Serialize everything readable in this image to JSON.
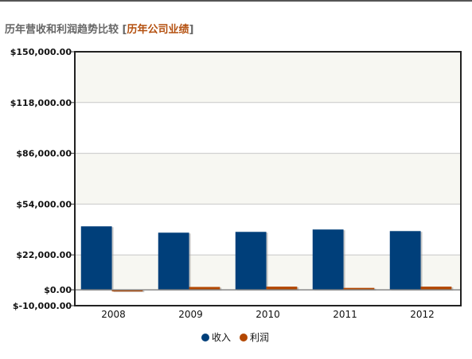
{
  "header": {
    "title": "历年营收和利润趋势比较",
    "bracket_open": "[",
    "link_label": "历年公司业绩",
    "bracket_close": "]"
  },
  "chart_data": {
    "type": "bar",
    "categories": [
      "2008",
      "2009",
      "2010",
      "2011",
      "2012"
    ],
    "series": [
      {
        "name": "收入",
        "color": "#003f7a",
        "values": [
          40000,
          36000,
          36500,
          38000,
          37000
        ]
      },
      {
        "name": "利润",
        "color": "#b34700",
        "values": [
          -1000,
          1800,
          2000,
          1200,
          2000
        ]
      }
    ],
    "ylim": [
      -10000,
      150000
    ],
    "yticks": [
      -10000,
      0,
      22000,
      54000,
      86000,
      118000,
      150000
    ],
    "ytick_labels": [
      "$-10,000.00",
      "$0.00",
      "$22,000.00",
      "$54,000.00",
      "$86,000.00",
      "$118,000.00",
      "$150,000.00"
    ],
    "grid": true,
    "legend_position": "bottom-center",
    "title": "",
    "xlabel": "",
    "ylabel": ""
  }
}
